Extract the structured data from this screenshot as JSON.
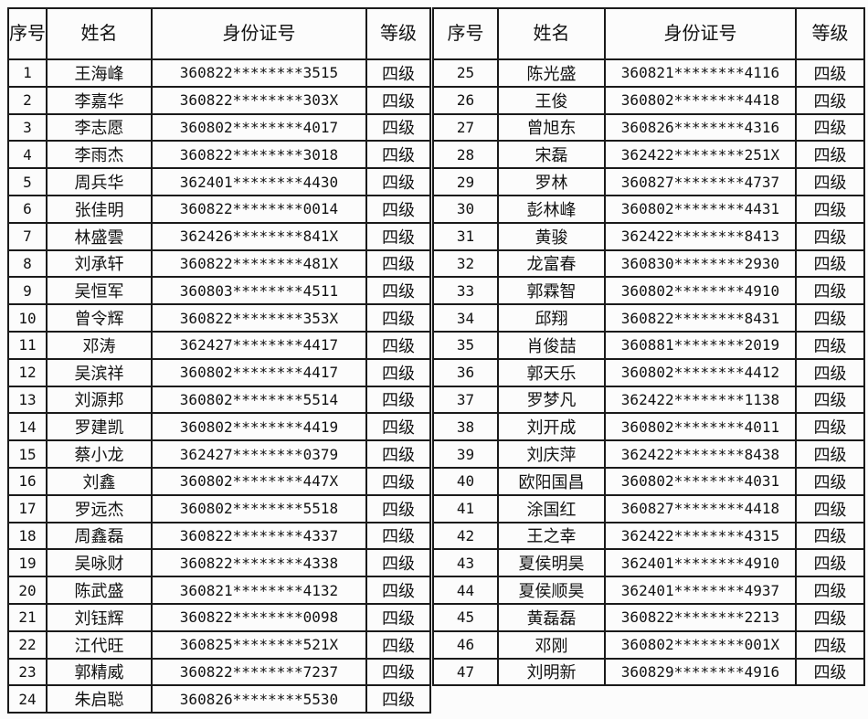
{
  "page": {
    "background": "#fcfcfc",
    "grid_color": "#1a1a1a",
    "text_color": "#121212"
  },
  "headers": {
    "seq": "序号",
    "name": "姓名",
    "id": "身份证号",
    "level": "等级"
  },
  "left_table": {
    "rows": [
      {
        "seq": "1",
        "name": "王海峰",
        "id": "360822********3515",
        "level": "四级"
      },
      {
        "seq": "2",
        "name": "李嘉华",
        "id": "360822********303X",
        "level": "四级"
      },
      {
        "seq": "3",
        "name": "李志愿",
        "id": "360802********4017",
        "level": "四级"
      },
      {
        "seq": "4",
        "name": "李雨杰",
        "id": "360822********3018",
        "level": "四级"
      },
      {
        "seq": "5",
        "name": "周兵华",
        "id": "362401********4430",
        "level": "四级"
      },
      {
        "seq": "6",
        "name": "张佳明",
        "id": "360822********0014",
        "level": "四级"
      },
      {
        "seq": "7",
        "name": "林盛雲",
        "id": "362426********841X",
        "level": "四级"
      },
      {
        "seq": "8",
        "name": "刘承轩",
        "id": "360822********481X",
        "level": "四级"
      },
      {
        "seq": "9",
        "name": "吴恒军",
        "id": "360803********4511",
        "level": "四级"
      },
      {
        "seq": "10",
        "name": "曾令辉",
        "id": "360822********353X",
        "level": "四级"
      },
      {
        "seq": "11",
        "name": "邓涛",
        "id": "362427********4417",
        "level": "四级"
      },
      {
        "seq": "12",
        "name": "吴滨祥",
        "id": "360802********4417",
        "level": "四级"
      },
      {
        "seq": "13",
        "name": "刘源邦",
        "id": "360802********5514",
        "level": "四级"
      },
      {
        "seq": "14",
        "name": "罗建凯",
        "id": "360802********4419",
        "level": "四级"
      },
      {
        "seq": "15",
        "name": "蔡小龙",
        "id": "362427********0379",
        "level": "四级"
      },
      {
        "seq": "16",
        "name": "刘鑫",
        "id": "360802********447X",
        "level": "四级"
      },
      {
        "seq": "17",
        "name": "罗远杰",
        "id": "360802********5518",
        "level": "四级"
      },
      {
        "seq": "18",
        "name": "周鑫磊",
        "id": "360822********4337",
        "level": "四级"
      },
      {
        "seq": "19",
        "name": "吴咏财",
        "id": "360822********4338",
        "level": "四级"
      },
      {
        "seq": "20",
        "name": "陈武盛",
        "id": "360821********4132",
        "level": "四级"
      },
      {
        "seq": "21",
        "name": "刘钰辉",
        "id": "360822********0098",
        "level": "四级"
      },
      {
        "seq": "22",
        "name": "江代旺",
        "id": "360825********521X",
        "level": "四级"
      },
      {
        "seq": "23",
        "name": "郭精威",
        "id": "360822********7237",
        "level": "四级"
      },
      {
        "seq": "24",
        "name": "朱启聪",
        "id": "360826********5530",
        "level": "四级"
      }
    ]
  },
  "right_table": {
    "rows": [
      {
        "seq": "25",
        "name": "陈光盛",
        "id": "360821********4116",
        "level": "四级"
      },
      {
        "seq": "26",
        "name": "王俊",
        "id": "360802********4418",
        "level": "四级"
      },
      {
        "seq": "27",
        "name": "曾旭东",
        "id": "360826********4316",
        "level": "四级"
      },
      {
        "seq": "28",
        "name": "宋磊",
        "id": "362422********251X",
        "level": "四级"
      },
      {
        "seq": "29",
        "name": "罗林",
        "id": "360827********4737",
        "level": "四级"
      },
      {
        "seq": "30",
        "name": "彭林峰",
        "id": "360802********4431",
        "level": "四级"
      },
      {
        "seq": "31",
        "name": "黄骏",
        "id": "362422********8413",
        "level": "四级"
      },
      {
        "seq": "32",
        "name": "龙富春",
        "id": "360830********2930",
        "level": "四级"
      },
      {
        "seq": "33",
        "name": "郭霖智",
        "id": "360802********4910",
        "level": "四级"
      },
      {
        "seq": "34",
        "name": "邱翔",
        "id": "360822********8431",
        "level": "四级"
      },
      {
        "seq": "35",
        "name": "肖俊喆",
        "id": "360881********2019",
        "level": "四级"
      },
      {
        "seq": "36",
        "name": "郭天乐",
        "id": "360802********4412",
        "level": "四级"
      },
      {
        "seq": "37",
        "name": "罗梦凡",
        "id": "362422********1138",
        "level": "四级"
      },
      {
        "seq": "38",
        "name": "刘开成",
        "id": "360802********4011",
        "level": "四级"
      },
      {
        "seq": "39",
        "name": "刘庆萍",
        "id": "362422********8438",
        "level": "四级"
      },
      {
        "seq": "40",
        "name": "欧阳国昌",
        "id": "360802********4031",
        "level": "四级"
      },
      {
        "seq": "41",
        "name": "涂国红",
        "id": "360827********4418",
        "level": "四级"
      },
      {
        "seq": "42",
        "name": "王之幸",
        "id": "362422********4315",
        "level": "四级"
      },
      {
        "seq": "43",
        "name": "夏侯明昊",
        "id": "362401********4910",
        "level": "四级"
      },
      {
        "seq": "44",
        "name": "夏侯顺昊",
        "id": "362401********4937",
        "level": "四级"
      },
      {
        "seq": "45",
        "name": "黄磊磊",
        "id": "360822********2213",
        "level": "四级"
      },
      {
        "seq": "46",
        "name": "邓刚",
        "id": "360802********001X",
        "level": "四级"
      },
      {
        "seq": "47",
        "name": "刘明新",
        "id": "360829********4916",
        "level": "四级"
      }
    ]
  }
}
